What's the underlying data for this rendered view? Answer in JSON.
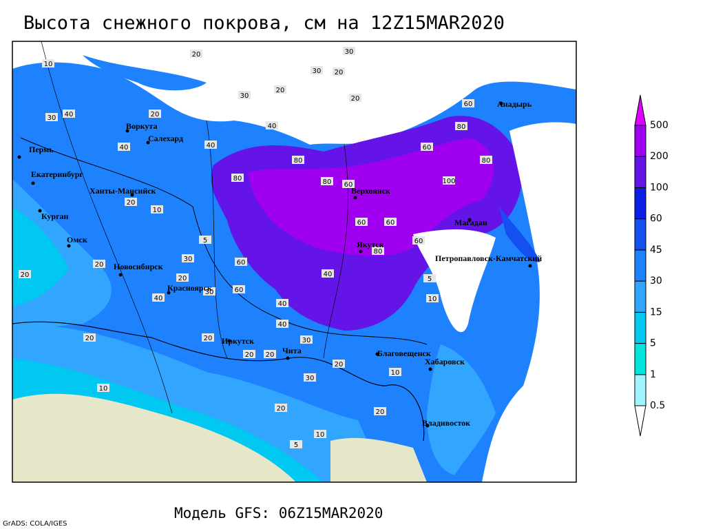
{
  "title": "Высота снежного покрова, см на 12Z15MAR2020",
  "footer": "Модель GFS: 06Z15MAR2020",
  "credit": "GrADS: COLA/IGES",
  "cities": [
    "Воркута",
    "Салехард",
    "Пермь",
    "Екатеринбург",
    "Ханты-Мансийск",
    "Курган",
    "Омск",
    "Новосибирск",
    "Красноярск",
    "Иркутск",
    "Чита",
    "Верхоянск",
    "Якутск",
    "Магадан",
    "Анадырь",
    "Петропавловск-Камчатский",
    "Благовещенск",
    "Хабаровск",
    "Владивосток"
  ],
  "contour_labels": [
    20,
    30,
    30,
    20,
    20,
    10,
    40,
    30,
    20,
    40,
    30,
    20,
    40,
    60,
    80,
    80,
    100,
    80,
    60,
    60,
    80,
    80,
    60,
    60,
    40,
    60,
    40,
    20,
    20,
    20,
    10,
    5,
    20,
    30,
    40,
    20,
    30,
    20,
    20,
    10,
    5,
    10,
    20,
    30,
    40,
    60,
    80,
    20,
    10,
    40,
    30,
    60,
    20,
    20,
    10,
    5
  ],
  "colorbar": {
    "levels": [
      0.5,
      1,
      5,
      15,
      30,
      45,
      60,
      100,
      200,
      500
    ],
    "colors": [
      "#ffffff",
      "#a0f5ff",
      "#00e6dc",
      "#00c8f0",
      "#32a5ff",
      "#1e82ff",
      "#1450f0",
      "#0a1ee6",
      "#6414e6",
      "#a000f0",
      "#dc00ff"
    ]
  }
}
